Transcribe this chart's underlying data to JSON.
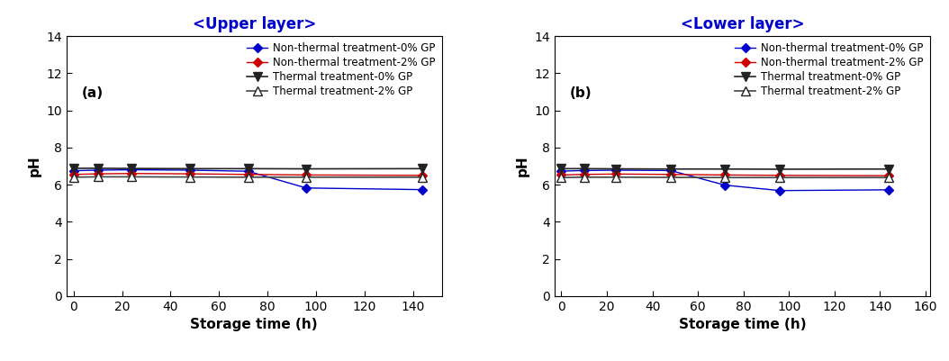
{
  "title_a": "<Upper layer>",
  "title_b": "<Lower layer>",
  "label_a": "(a)",
  "label_b": "(b)",
  "xlabel": "Storage time (h)",
  "ylabel": "pH",
  "xlim_a": [
    -3,
    152
  ],
  "xlim_b": [
    -3,
    162
  ],
  "ylim": [
    0,
    14
  ],
  "yticks": [
    0,
    2,
    4,
    6,
    8,
    10,
    12,
    14
  ],
  "xticks_a": [
    0,
    20,
    40,
    60,
    80,
    100,
    120,
    140
  ],
  "xticks_b": [
    0,
    20,
    40,
    60,
    80,
    100,
    120,
    140,
    160
  ],
  "series": [
    {
      "label": "Non-thermal treatment-0% GP",
      "color": "#0000cc",
      "marker": "D",
      "markersize": 5,
      "markerfacecolor": "#0000cc",
      "markeredgecolor": "#0000cc",
      "linewidth": 1.0,
      "linestyle": "-",
      "x_a": [
        0,
        10,
        24,
        48,
        72,
        96,
        144
      ],
      "y_a": [
        6.75,
        6.78,
        6.8,
        6.78,
        6.72,
        5.82,
        5.73
      ],
      "x_b": [
        0,
        10,
        24,
        48,
        72,
        96,
        144
      ],
      "y_b": [
        6.73,
        6.76,
        6.78,
        6.76,
        5.97,
        5.68,
        5.72
      ]
    },
    {
      "label": "Non-thermal treatment-2% GP",
      "color": "#cc0000",
      "marker": "D",
      "markersize": 5,
      "markerfacecolor": "#cc0000",
      "markeredgecolor": "#cc0000",
      "linewidth": 1.0,
      "linestyle": "-",
      "x_a": [
        0,
        10,
        24,
        48,
        72,
        96,
        144
      ],
      "y_a": [
        6.55,
        6.58,
        6.6,
        6.58,
        6.55,
        6.52,
        6.5
      ],
      "x_b": [
        0,
        10,
        24,
        48,
        72,
        96,
        144
      ],
      "y_b": [
        6.52,
        6.55,
        6.57,
        6.55,
        6.52,
        6.5,
        6.48
      ]
    },
    {
      "label": "Thermal treatment-0% GP",
      "color": "#222222",
      "marker": "v",
      "markersize": 7,
      "markerfacecolor": "#222222",
      "markeredgecolor": "#222222",
      "linewidth": 1.2,
      "linestyle": "-",
      "x_a": [
        0,
        10,
        24,
        48,
        72,
        96,
        144
      ],
      "y_a": [
        6.88,
        6.88,
        6.87,
        6.86,
        6.86,
        6.85,
        6.86
      ],
      "x_b": [
        0,
        10,
        24,
        48,
        72,
        96,
        144
      ],
      "y_b": [
        6.86,
        6.86,
        6.85,
        6.84,
        6.84,
        6.83,
        6.84
      ]
    },
    {
      "label": "Thermal treatment-2% GP",
      "color": "#444444",
      "marker": "^",
      "markersize": 7,
      "markerfacecolor": "white",
      "markeredgecolor": "#222222",
      "linewidth": 1.2,
      "linestyle": "-",
      "x_a": [
        0,
        10,
        24,
        48,
        72,
        96,
        144
      ],
      "y_a": [
        6.4,
        6.42,
        6.42,
        6.41,
        6.4,
        6.4,
        6.4
      ],
      "x_b": [
        0,
        10,
        24,
        48,
        72,
        96,
        144
      ],
      "y_b": [
        6.38,
        6.4,
        6.4,
        6.39,
        6.38,
        6.38,
        6.38
      ]
    }
  ],
  "title_color": "#0000cc",
  "title_fontsize": 12,
  "label_fontsize": 11,
  "tick_fontsize": 10,
  "legend_fontsize": 8.5,
  "axis_label_fontsize": 11
}
